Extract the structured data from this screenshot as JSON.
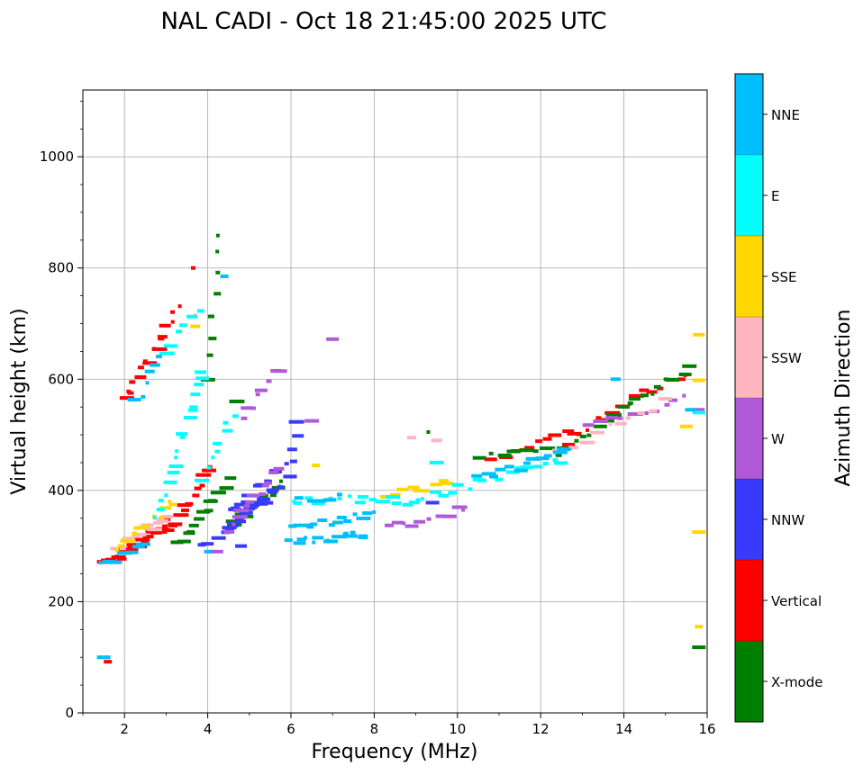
{
  "chart_data": {
    "type": "scatter",
    "title": "NAL CADI - Oct 18 21:45:00 2025 UTC",
    "xlabel": "Frequency (MHz)",
    "ylabel": "Virtual height (km)",
    "xlim": [
      1,
      16
    ],
    "ylim": [
      0,
      1120
    ],
    "xticks": [
      2,
      4,
      6,
      8,
      10,
      12,
      14,
      16
    ],
    "yticks": [
      0,
      200,
      400,
      600,
      800,
      1000
    ],
    "xtick_labels": [
      "2",
      "4",
      "6",
      "8",
      "10",
      "12",
      "14",
      "16"
    ],
    "ytick_labels": [
      "0",
      "200",
      "400",
      "600",
      "800",
      "1000"
    ],
    "grid": true,
    "colorbar": {
      "label": "Azimuth Direction",
      "categories": [
        {
          "name": "X-mode",
          "color": "#008000"
        },
        {
          "name": "Vertical",
          "color": "#ff0000"
        },
        {
          "name": "NNW",
          "color": "#3a3aff"
        },
        {
          "name": "W",
          "color": "#b05ad8"
        },
        {
          "name": "SSW",
          "color": "#ffb6c1"
        },
        {
          "name": "SSE",
          "color": "#ffd700"
        },
        {
          "name": "E",
          "color": "#00ffff"
        },
        {
          "name": "NNE",
          "color": "#00bfff"
        }
      ]
    },
    "series": [
      {
        "name": "Vertical",
        "traces": [
          {
            "from": [
              1.5,
              265
            ],
            "to": [
              3.2,
              345
            ],
            "n": 32
          },
          {
            "from": [
              2.0,
              560
            ],
            "to": [
              3.3,
              725
            ],
            "n": 16
          },
          {
            "from": [
              3.3,
              350
            ],
            "to": [
              4.1,
              440
            ],
            "n": 10
          },
          {
            "from": [
              10.8,
              455
            ],
            "to": [
              12.6,
              500
            ],
            "n": 10
          },
          {
            "from": [
              12.6,
              490
            ],
            "to": [
              15.5,
              615
            ],
            "n": 16
          }
        ],
        "points": [
          [
            1.6,
            92
          ],
          [
            3.65,
            800
          ]
        ]
      },
      {
        "name": "X-mode",
        "traces": [
          {
            "from": [
              3.3,
              300
            ],
            "to": [
              4.5,
              420
            ],
            "n": 14
          },
          {
            "from": [
              4.0,
              600
            ],
            "to": [
              4.3,
              860
            ],
            "n": 8
          },
          {
            "from": [
              4.5,
              330
            ],
            "to": [
              5.8,
              410
            ],
            "n": 12
          },
          {
            "from": [
              10.5,
              460
            ],
            "to": [
              12.5,
              470
            ],
            "n": 8
          },
          {
            "from": [
              12.5,
              470
            ],
            "to": [
              15.6,
              625
            ],
            "n": 18
          }
        ],
        "points": [
          [
            15.8,
            118
          ],
          [
            9.3,
            505
          ],
          [
            4.7,
            560
          ]
        ]
      },
      {
        "name": "NNW",
        "traces": [
          {
            "from": [
              3.9,
              300
            ],
            "to": [
              6.0,
              420
            ],
            "n": 14
          },
          {
            "from": [
              4.6,
              360
            ],
            "to": [
              5.9,
              450
            ],
            "n": 14
          },
          {
            "from": [
              4.5,
              330
            ],
            "to": [
              5.6,
              400
            ],
            "n": 12
          },
          {
            "from": [
              6.0,
              420
            ],
            "to": [
              6.2,
              520
            ],
            "n": 5
          }
        ],
        "points": [
          [
            9.4,
            378
          ],
          [
            4.8,
            300
          ]
        ]
      },
      {
        "name": "W",
        "traces": [
          {
            "from": [
              4.5,
              330
            ],
            "to": [
              5.7,
              440
            ],
            "n": 12
          },
          {
            "from": [
              8.3,
              330
            ],
            "to": [
              10.2,
              370
            ],
            "n": 10
          },
          {
            "from": [
              4.8,
              530
            ],
            "to": [
              5.7,
              620
            ],
            "n": 8
          },
          {
            "from": [
              13.2,
              520
            ],
            "to": [
              15.5,
              565
            ],
            "n": 10
          }
        ],
        "points": [
          [
            6.5,
            525
          ],
          [
            7.0,
            672
          ],
          [
            4.2,
            290
          ],
          [
            15.8,
            545
          ]
        ]
      },
      {
        "name": "SSW",
        "traces": [
          {
            "from": [
              1.7,
              290
            ],
            "to": [
              3.0,
              350
            ],
            "n": 16
          },
          {
            "from": [
              12.5,
              475
            ],
            "to": [
              15.0,
              560
            ],
            "n": 10
          }
        ],
        "points": [
          [
            3.7,
            715
          ],
          [
            8.9,
            495
          ],
          [
            9.5,
            490
          ]
        ]
      },
      {
        "name": "SSE",
        "traces": [
          {
            "from": [
              1.8,
              300
            ],
            "to": [
              3.2,
              380
            ],
            "n": 12
          },
          {
            "from": [
              8.2,
              385
            ],
            "to": [
              9.8,
              415
            ],
            "n": 10
          }
        ],
        "points": [
          [
            15.8,
            680
          ],
          [
            15.8,
            598
          ],
          [
            15.8,
            325
          ],
          [
            15.8,
            155
          ],
          [
            15.5,
            515
          ],
          [
            6.6,
            445
          ],
          [
            3.7,
            695
          ]
        ]
      },
      {
        "name": "E",
        "traces": [
          {
            "from": [
              2.8,
              350
            ],
            "to": [
              3.9,
              620
            ],
            "n": 18
          },
          {
            "from": [
              6.0,
              385
            ],
            "to": [
              9.0,
              380
            ],
            "n": 16
          },
          {
            "from": [
              9.0,
              385
            ],
            "to": [
              12.5,
              455
            ],
            "n": 18
          },
          {
            "from": [
              3.9,
              420
            ],
            "to": [
              4.6,
              540
            ],
            "n": 8
          },
          {
            "from": [
              3.0,
              650
            ],
            "to": [
              3.8,
              720
            ],
            "n": 6
          }
        ],
        "points": [
          [
            9.5,
            450
          ],
          [
            15.8,
            540
          ]
        ]
      },
      {
        "name": "NNE",
        "traces": [
          {
            "from": [
              1.5,
              270
            ],
            "to": [
              2.4,
              300
            ],
            "n": 8
          },
          {
            "from": [
              6.0,
              310
            ],
            "to": [
              7.8,
              320
            ],
            "n": 14
          },
          {
            "from": [
              6.0,
              330
            ],
            "to": [
              8.0,
              360
            ],
            "n": 14
          },
          {
            "from": [
              6.2,
              380
            ],
            "to": [
              7.2,
              385
            ],
            "n": 6
          },
          {
            "from": [
              10.5,
              420
            ],
            "to": [
              12.6,
              470
            ],
            "n": 12
          },
          {
            "from": [
              2.3,
              560
            ],
            "to": [
              2.9,
              640
            ],
            "n": 6
          }
        ],
        "points": [
          [
            4.0,
            290
          ],
          [
            4.4,
            785
          ],
          [
            15.6,
            545
          ],
          [
            13.8,
            600
          ],
          [
            1.5,
            100
          ]
        ]
      }
    ]
  }
}
